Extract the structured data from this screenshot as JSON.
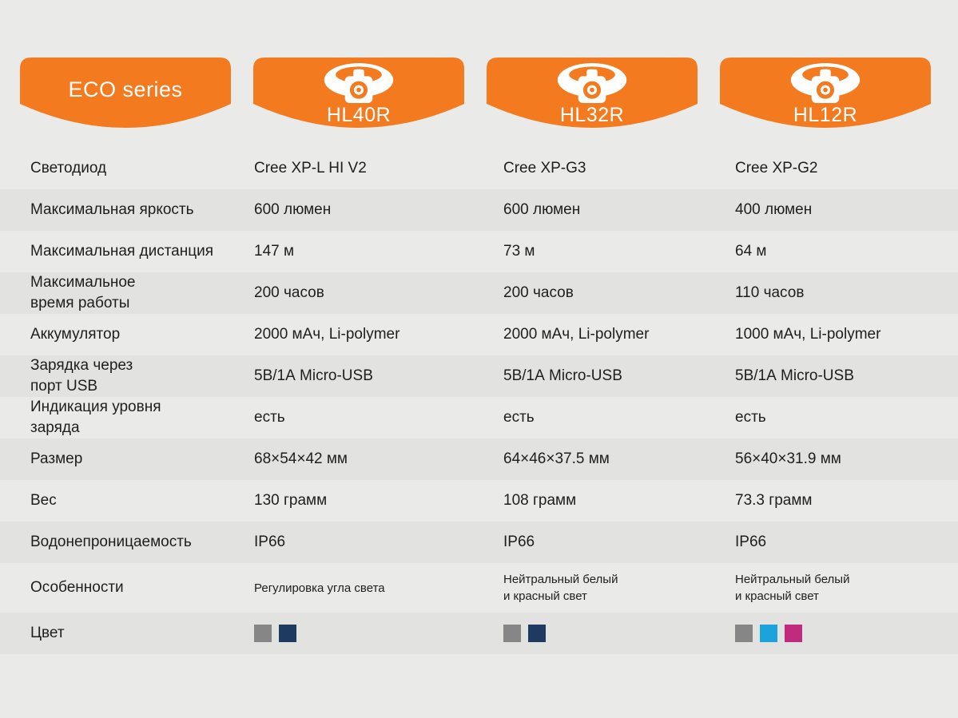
{
  "colors": {
    "accent_orange": "#f37a1e",
    "page_background": "#eaebe9",
    "shaded_row": "#e2e3e1",
    "banner_text": "#ffffff"
  },
  "banners": {
    "eco_label": "ECO series",
    "products": [
      {
        "label": "HL40R",
        "icon": "headlamp-icon"
      },
      {
        "label": "HL32R",
        "icon": "headlamp-icon"
      },
      {
        "label": "HL12R",
        "icon": "headlamp-icon"
      }
    ]
  },
  "chart_data": {
    "type": "table",
    "title": "ECO series",
    "columns": [
      "HL40R",
      "HL32R",
      "HL12R"
    ],
    "rows": [
      {
        "label": "Светодиод",
        "values": [
          "Cree XP-L HI V2",
          "Cree XP-G3",
          "Cree XP-G2"
        ]
      },
      {
        "label": "Максимальная яркость",
        "values": [
          "600 люмен",
          "600 люмен",
          "400 люмен"
        ]
      },
      {
        "label": "Максимальная дистанция",
        "values": [
          "147 м",
          "73 м",
          "64 м"
        ]
      },
      {
        "label": "Максимальное\nвремя работы",
        "values": [
          "200 часов",
          "200 часов",
          "110 часов"
        ]
      },
      {
        "label": "Аккумулятор",
        "values": [
          "2000 мАч, Li-polymer",
          "2000 мАч, Li-polymer",
          "1000 мАч, Li-polymer"
        ]
      },
      {
        "label": "Зарядка через\nпорт USB",
        "values": [
          "5В/1А Micro-USB",
          "5В/1А Micro-USB",
          "5В/1А Micro-USB"
        ]
      },
      {
        "label": "Индикация уровня\nзаряда",
        "values": [
          "есть",
          "есть",
          "есть"
        ]
      },
      {
        "label": "Размер",
        "values": [
          "68×54×42 мм",
          "64×46×37.5 мм",
          "56×40×31.9 мм"
        ]
      },
      {
        "label": "Вес",
        "values": [
          "130 грамм",
          "108 грамм",
          "73.3 грамм"
        ]
      },
      {
        "label": "Водонепроницаемость",
        "values": [
          "IP66",
          "IP66",
          "IP66"
        ]
      },
      {
        "label": "Особенности",
        "values": [
          "Регулировка угла света",
          "Нейтральный белый\nи красный свет",
          "Нейтральный белый\nи красный свет"
        ],
        "small": true,
        "tall": true
      },
      {
        "label": "Цвет",
        "swatches": [
          [
            "#868686",
            "#1f3a60"
          ],
          [
            "#868686",
            "#1f3a60"
          ],
          [
            "#868686",
            "#1ca3db",
            "#c02b80"
          ]
        ]
      }
    ]
  }
}
